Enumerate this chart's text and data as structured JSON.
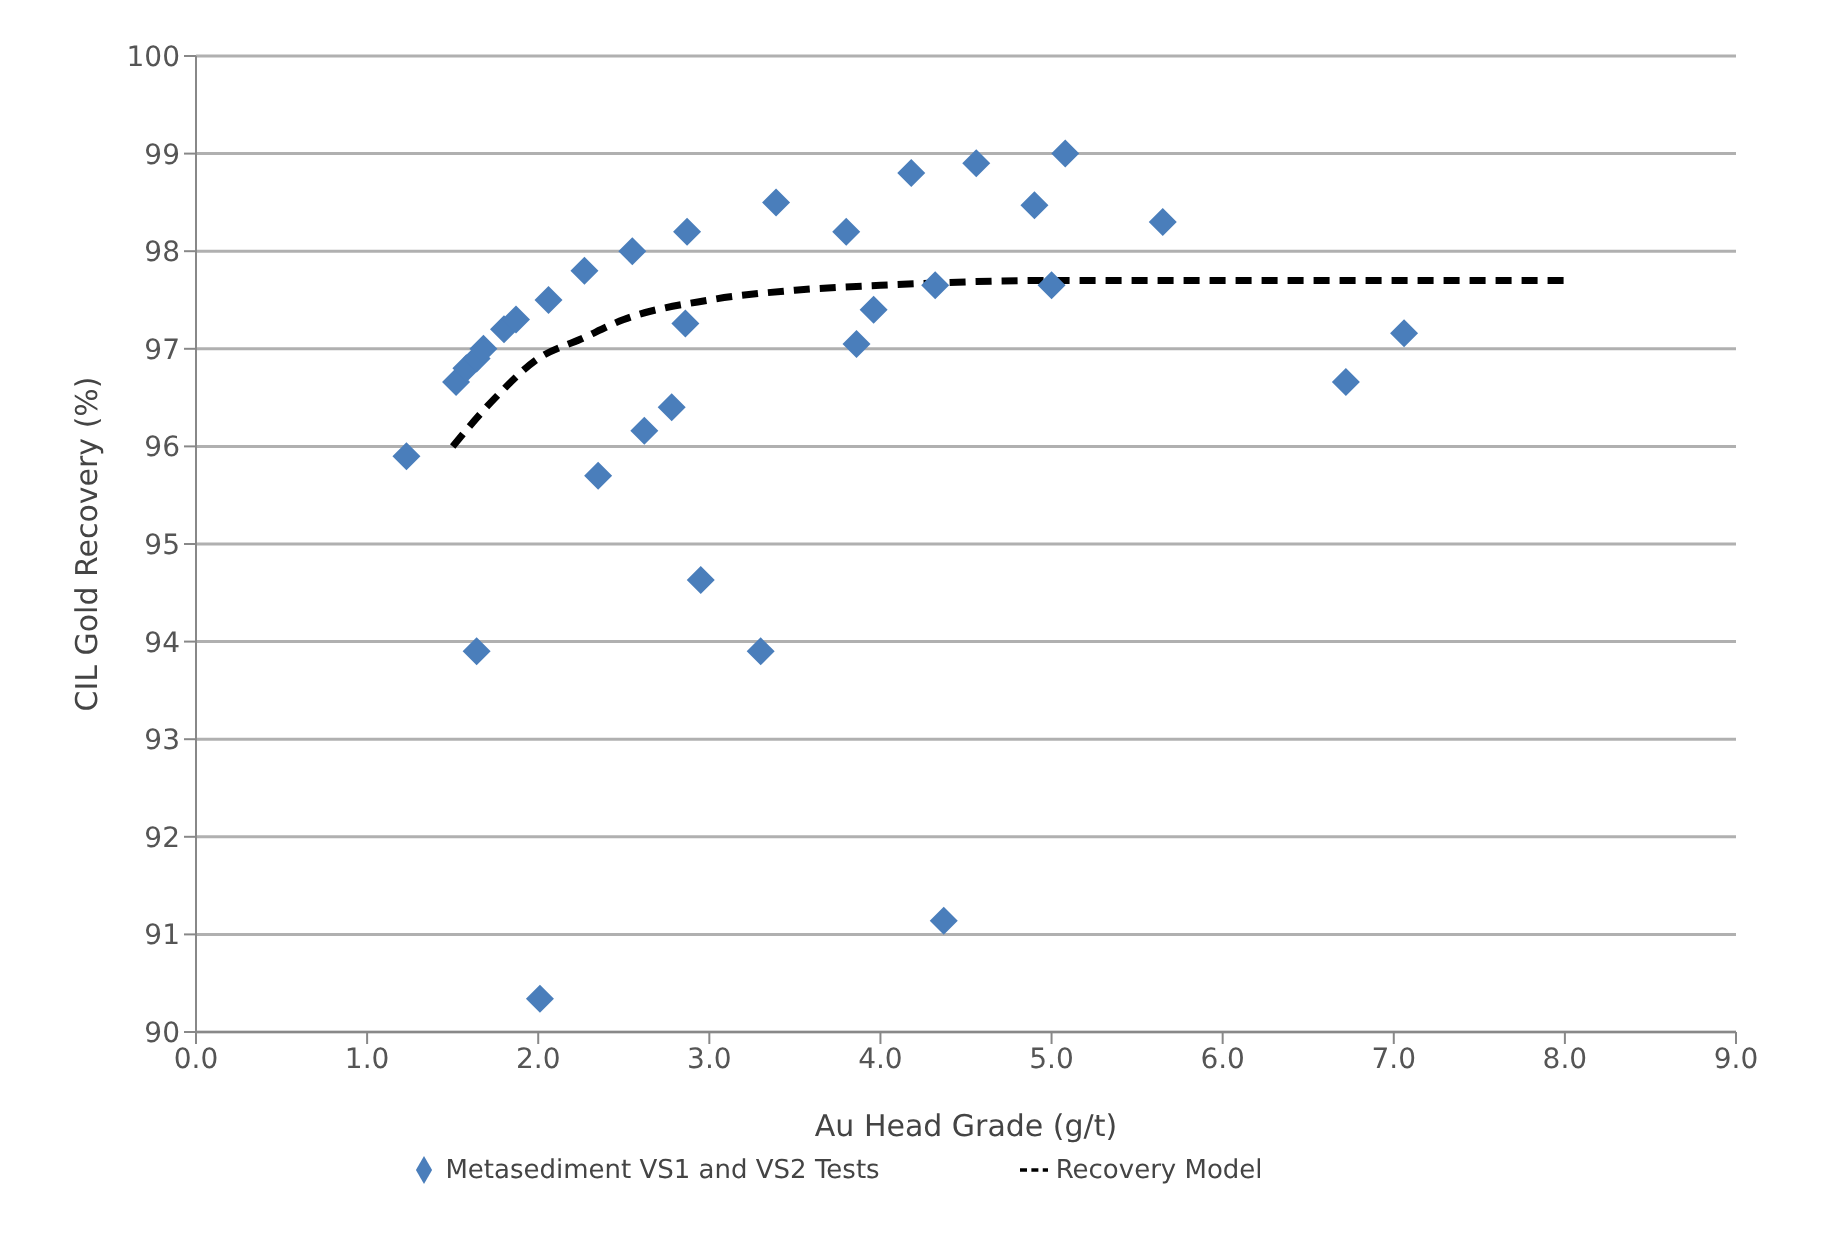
{
  "chart_data": {
    "type": "scatter",
    "xlabel": "Au Head Grade (g/t)",
    "ylabel": "CIL Gold Recovery (%)",
    "xlim": [
      0,
      9
    ],
    "xticks": [
      {
        "value": 0,
        "label": "0.0"
      },
      {
        "value": 1,
        "label": "1.0"
      },
      {
        "value": 2,
        "label": "2.0"
      },
      {
        "value": 3,
        "label": "3.0"
      },
      {
        "value": 4,
        "label": "4.0"
      },
      {
        "value": 5,
        "label": "5.0"
      },
      {
        "value": 6,
        "label": "6.0"
      },
      {
        "value": 7,
        "label": "7.0"
      },
      {
        "value": 8,
        "label": "8.0"
      },
      {
        "value": 9,
        "label": "9.0"
      }
    ],
    "ylim": [
      90,
      100
    ],
    "yticks": [
      90,
      91,
      92,
      93,
      94,
      95,
      96,
      97,
      98,
      99,
      100
    ],
    "grid": "y",
    "legend": "bottom",
    "series": [
      {
        "name": "Metasediment VS1 and VS2 Tests",
        "type": "scatter",
        "color": "#4a7ebb",
        "marker": "diamond",
        "x": [
          1.23,
          1.52,
          1.58,
          1.64,
          1.68,
          1.8,
          1.87,
          2.06,
          2.27,
          2.55,
          2.87,
          3.39,
          3.8,
          4.18,
          4.56,
          4.9,
          5.08,
          5.65,
          4.32,
          5.0,
          3.96,
          3.86,
          2.86,
          2.78,
          2.62,
          2.35,
          2.95,
          1.64,
          3.3,
          4.37,
          2.01,
          6.72,
          7.06
        ],
        "values": [
          95.9,
          96.66,
          96.8,
          96.9,
          97.0,
          97.2,
          97.3,
          97.5,
          97.8,
          98.0,
          98.2,
          98.5,
          98.2,
          98.8,
          98.9,
          98.47,
          99.0,
          98.3,
          97.65,
          97.65,
          97.4,
          97.05,
          97.26,
          96.4,
          96.16,
          95.7,
          94.63,
          93.9,
          93.9,
          91.14,
          90.34,
          96.66,
          97.16
        ]
      },
      {
        "name": "Recovery Model",
        "type": "line",
        "color": "#000000",
        "line_style": "dashed",
        "marker": "none",
        "x": [
          1.5,
          1.75,
          2.0,
          2.25,
          2.5,
          3.0,
          3.5,
          4.0,
          5.0,
          6.0,
          8.0
        ],
        "values": [
          96.0,
          96.5,
          96.9,
          97.1,
          97.3,
          97.5,
          97.6,
          97.65,
          97.7,
          97.7,
          97.7
        ]
      }
    ]
  }
}
